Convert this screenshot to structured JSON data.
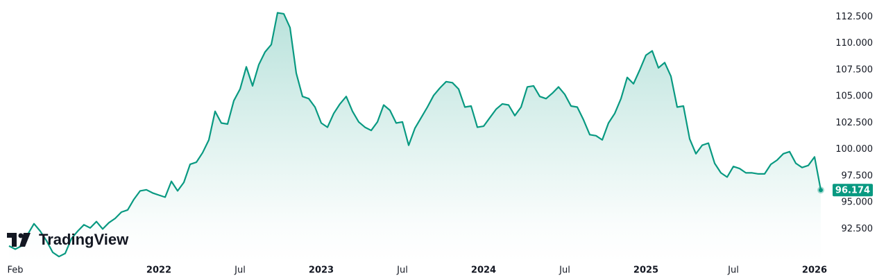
{
  "chart_data": {
    "type": "area",
    "watermark": "TradingView",
    "color": "#089981",
    "categories": [
      null,
      "Feb",
      null,
      null,
      null,
      null,
      null,
      null,
      null,
      null,
      null,
      null,
      null,
      null,
      null,
      null,
      null,
      null,
      null,
      null,
      null,
      null,
      null,
      null,
      "2022",
      null,
      null,
      null,
      null,
      null,
      null,
      null,
      null,
      null,
      null,
      null,
      null,
      "Jul",
      null,
      null,
      null,
      null,
      null,
      null,
      null,
      null,
      null,
      null,
      null,
      null,
      "2023",
      null,
      null,
      null,
      null,
      null,
      null,
      null,
      null,
      null,
      null,
      null,
      null,
      "Jul",
      null,
      null,
      null,
      null,
      null,
      null,
      null,
      null,
      null,
      null,
      null,
      null,
      "2024",
      null,
      null,
      null,
      null,
      null,
      null,
      null,
      null,
      null,
      null,
      null,
      null,
      "Jul",
      null,
      null,
      null,
      null,
      null,
      null,
      null,
      null,
      null,
      null,
      null,
      null,
      "2025",
      null,
      null,
      null,
      null,
      null,
      null,
      null,
      null,
      null,
      null,
      null,
      null,
      null,
      "Jul",
      null,
      null,
      null,
      null,
      null,
      null,
      null,
      null,
      null,
      null,
      null,
      null,
      "2026",
      null
    ],
    "values": [
      90.9,
      90.6,
      90.9,
      92.0,
      93.0,
      92.3,
      91.4,
      90.3,
      89.9,
      90.2,
      91.6,
      92.3,
      92.9,
      92.6,
      93.2,
      92.5,
      93.1,
      93.5,
      94.1,
      94.3,
      95.3,
      96.1,
      96.2,
      95.9,
      95.7,
      95.5,
      97.0,
      96.1,
      96.9,
      98.6,
      98.8,
      99.7,
      100.9,
      103.6,
      102.5,
      102.4,
      104.6,
      105.7,
      107.8,
      106.0,
      108.0,
      109.2,
      109.9,
      112.9,
      112.8,
      111.5,
      107.2,
      105.0,
      104.8,
      104.0,
      102.5,
      102.1,
      103.4,
      104.3,
      105.0,
      103.6,
      102.6,
      102.1,
      101.8,
      102.6,
      104.2,
      103.7,
      102.5,
      102.6,
      100.4,
      102.0,
      103.0,
      104.0,
      105.1,
      105.8,
      106.4,
      106.3,
      105.7,
      104.0,
      104.1,
      102.1,
      102.2,
      103.0,
      103.8,
      104.3,
      104.2,
      103.2,
      104.0,
      105.9,
      106.0,
      105.0,
      104.8,
      105.3,
      105.9,
      105.2,
      104.1,
      104.0,
      102.8,
      101.4,
      101.3,
      100.9,
      102.5,
      103.4,
      104.8,
      106.8,
      106.2,
      107.5,
      108.9,
      109.3,
      107.7,
      108.2,
      106.9,
      104.0,
      104.1,
      101.0,
      99.6,
      100.4,
      100.6,
      98.7,
      97.8,
      97.4,
      98.4,
      98.2,
      97.8,
      97.8,
      97.7,
      97.7,
      98.6,
      99.0,
      99.6,
      99.8,
      98.7,
      98.3,
      98.5,
      99.3,
      96.174
    ],
    "ylim": [
      89.3,
      114.1
    ],
    "yticks": [
      {
        "value": 92.5,
        "label": "92.500"
      },
      {
        "value": 95,
        "label": "95.000"
      },
      {
        "value": 97.5,
        "label": "97.500"
      },
      {
        "value": 100,
        "label": "100.000"
      },
      {
        "value": 102.5,
        "label": "102.500"
      },
      {
        "value": 105,
        "label": "105.000"
      },
      {
        "value": 107.5,
        "label": "107.500"
      },
      {
        "value": 110,
        "label": "110.000"
      },
      {
        "value": 112.5,
        "label": "112.500"
      }
    ],
    "grid": false
  }
}
